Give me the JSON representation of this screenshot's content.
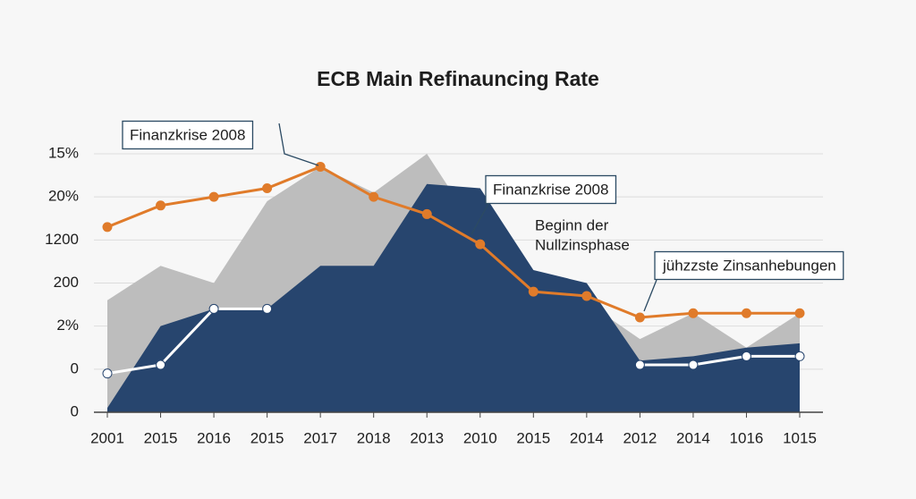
{
  "chart_data": {
    "type": "area",
    "title": "ECB Main Refinauncing Rate",
    "categories": [
      "2001",
      "2015",
      "2016",
      "2015",
      "2017",
      "2018",
      "2013",
      "2010",
      "2015",
      "2014",
      "2012",
      "2014",
      "1016",
      "1015"
    ],
    "ylim": [
      0,
      6.2
    ],
    "yticks": [
      0,
      {
        "value": 1,
        "label": "0"
      },
      {
        "value": 2,
        "label": "2%"
      },
      {
        "value": 3,
        "label": "200"
      },
      {
        "value": 4,
        "label": "1200"
      },
      {
        "value": 5,
        "label": "20%"
      },
      {
        "value": 6,
        "label": "15%"
      }
    ],
    "grid": true,
    "series": [
      {
        "color": "#bdbdbd",
        "kind": "area",
        "values": [
          2.6,
          3.4,
          3.0,
          4.9,
          5.7,
          5.1,
          6.0,
          4.1,
          3.3,
          2.55,
          1.7,
          2.3,
          1.5,
          2.3
        ]
      },
      {
        "color": "#27456e",
        "kind": "area",
        "values": [
          0.1,
          2.0,
          2.4,
          2.4,
          3.4,
          3.4,
          5.3,
          5.2,
          3.3,
          3.0,
          1.2,
          1.3,
          1.5,
          1.6
        ]
      },
      {
        "color": "#e07b2a",
        "kind": "line",
        "values": [
          4.3,
          4.8,
          5.0,
          5.2,
          5.7,
          5.0,
          4.6,
          3.9,
          2.8,
          2.7,
          2.2,
          2.3,
          2.3,
          2.3
        ]
      },
      {
        "color": "#ffffff",
        "kind": "line",
        "values": [
          0.9,
          1.1,
          2.4,
          2.4,
          null,
          null,
          null,
          null,
          null,
          null,
          1.1,
          1.1,
          1.3,
          1.3
        ]
      }
    ],
    "annotations": [
      {
        "lines": [
          "Finanzkrise 2008"
        ],
        "boxed": true
      },
      {
        "lines": [
          "Finanzkrise 2008"
        ],
        "boxed": true
      },
      {
        "lines": [
          "Beginn der",
          "Nullzinsphase"
        ],
        "boxed": false
      },
      {
        "lines": [
          "jühzzste Zinsanhebungen"
        ],
        "boxed": true
      }
    ]
  }
}
